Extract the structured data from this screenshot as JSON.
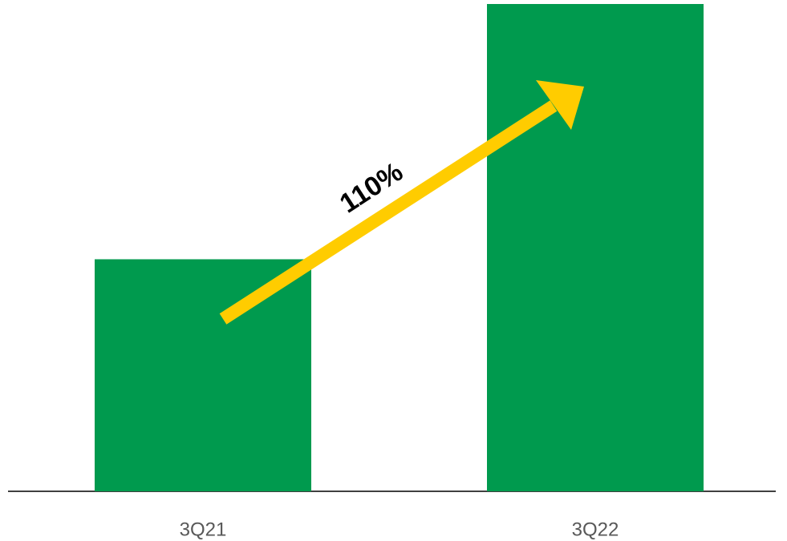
{
  "chart_data": {
    "type": "bar",
    "categories": [
      "3Q21",
      "3Q22"
    ],
    "values": [
      100,
      210
    ],
    "color": "#009a4e",
    "ylim": [
      0,
      210
    ],
    "annotation": "110%"
  }
}
